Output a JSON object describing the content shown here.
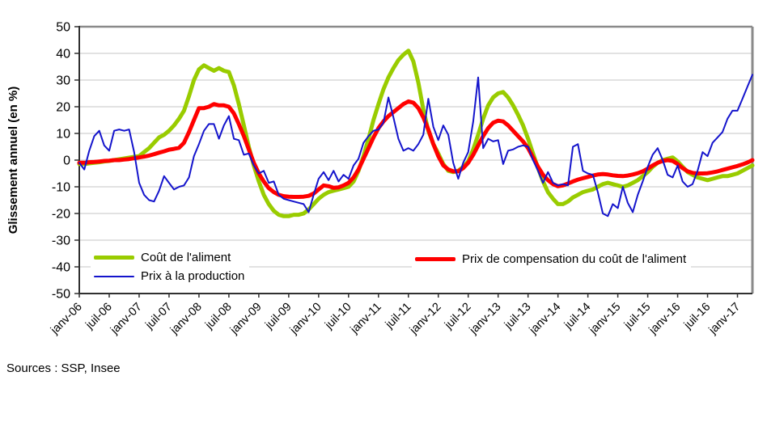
{
  "chart_data": {
    "type": "line",
    "title": "",
    "ylabel": "Glissement annuel (en %)",
    "ylim": [
      -50,
      50
    ],
    "y_ticks": [
      50,
      40,
      30,
      20,
      10,
      0,
      -10,
      -20,
      -30,
      -40,
      -50
    ],
    "x_tick_labels": [
      "janv-06",
      "juil-06",
      "janv-07",
      "juil-07",
      "janv-08",
      "juil-08",
      "janv-09",
      "juil-09",
      "janv-10",
      "juil-10",
      "janv-11",
      "juil-11",
      "janv-12",
      "juil-12",
      "janv-13",
      "juil-13",
      "janv-14",
      "juil-14",
      "janv-15",
      "juil-15",
      "janv-16",
      "juil-16",
      "janv-17"
    ],
    "x_tick_every": 6,
    "n_points": 136,
    "grid": "horizontal-only",
    "legend_position": "inside-bottom",
    "grid_color": "#C6C6C6",
    "axis_color": "#303030",
    "border_color": "#8A8A8A",
    "series": [
      {
        "name": "Coût de l'aliment",
        "color": "#99CC00",
        "stroke_width": 5,
        "values": [
          -1.5,
          -1.5,
          -1.2,
          -1,
          -0.8,
          -0.5,
          -0.3,
          0,
          0.3,
          0.6,
          0.9,
          1.2,
          1.5,
          3,
          4.5,
          6.5,
          8.5,
          9.5,
          11,
          13,
          15.5,
          18.5,
          24,
          30,
          34,
          35.5,
          34.5,
          33.5,
          34.5,
          33.5,
          33,
          28,
          21,
          13,
          5,
          -2,
          -8,
          -13,
          -16.5,
          -19,
          -20.5,
          -21,
          -21,
          -20.5,
          -20.5,
          -20,
          -18.5,
          -16.5,
          -14.5,
          -13,
          -12,
          -11.5,
          -11,
          -10.5,
          -10,
          -8,
          -4,
          1.5,
          8,
          15,
          21,
          26.5,
          31,
          34.5,
          37.5,
          39.5,
          41,
          37,
          29,
          19,
          11,
          6,
          2.5,
          -1.5,
          -4,
          -4.5,
          -4,
          -2.5,
          -0.5,
          4,
          9.5,
          15.5,
          20.5,
          23.5,
          25,
          25.5,
          23.5,
          20.5,
          17,
          13,
          8,
          2.5,
          -3,
          -8,
          -12,
          -14.5,
          -16.5,
          -16.5,
          -15.5,
          -14,
          -13,
          -12,
          -11.5,
          -11,
          -10,
          -9,
          -8.5,
          -9,
          -9.5,
          -10,
          -9.5,
          -8.5,
          -7.5,
          -6,
          -4.5,
          -2.5,
          -1,
          0,
          0.5,
          1,
          -0.5,
          -2.5,
          -4.5,
          -5.5,
          -6.5,
          -7,
          -7.5,
          -7,
          -6.5,
          -6,
          -6,
          -5.5,
          -5,
          -4,
          -3,
          -2
        ]
      },
      {
        "name": "Prix de compensation du coût de l'aliment",
        "color": "#FF0000",
        "stroke_width": 5,
        "values": [
          -1,
          -1,
          -0.8,
          -0.7,
          -0.5,
          -0.3,
          -0.2,
          0,
          0,
          0.2,
          0.4,
          0.7,
          1,
          1.3,
          1.7,
          2.2,
          2.8,
          3.3,
          3.9,
          4.2,
          4.6,
          6.5,
          10.5,
          15,
          19.5,
          19.5,
          20,
          21,
          20.5,
          20.5,
          20,
          17.5,
          13.5,
          9,
          4,
          -1,
          -5,
          -8,
          -10.5,
          -12,
          -13,
          -13.5,
          -13.7,
          -13.8,
          -13.8,
          -13.7,
          -13.4,
          -12.5,
          -11,
          -9.5,
          -9.8,
          -10.4,
          -10.2,
          -9.5,
          -8.5,
          -6.5,
          -3.5,
          0.5,
          4.5,
          8.5,
          12,
          14.5,
          16.5,
          18,
          19.5,
          21,
          22,
          21.5,
          19.5,
          16,
          11.5,
          6,
          1.5,
          -2,
          -3.5,
          -4.2,
          -4.2,
          -3,
          -1,
          2,
          5.5,
          9,
          12,
          14,
          14.8,
          14.5,
          13,
          11,
          9,
          7,
          4.5,
          1,
          -2.5,
          -5.5,
          -7.5,
          -9,
          -9.8,
          -9.5,
          -8.8,
          -8,
          -7.3,
          -6.8,
          -6.3,
          -5.8,
          -5.4,
          -5.2,
          -5.4,
          -5.7,
          -5.9,
          -6,
          -5.8,
          -5.4,
          -4.9,
          -4.2,
          -3.2,
          -2,
          -1,
          -0.3,
          0,
          -0.3,
          -1.5,
          -3,
          -4.2,
          -4.8,
          -5,
          -5,
          -4.9,
          -4.6,
          -4.2,
          -3.7,
          -3.2,
          -2.7,
          -2.2,
          -1.6,
          -0.9,
          0
        ]
      },
      {
        "name": "Prix à la production",
        "color": "#1414CC",
        "stroke_width": 2,
        "values": [
          -1,
          -3.5,
          3.5,
          9,
          11,
          5.5,
          3.5,
          11,
          11.5,
          11,
          11.5,
          3,
          -8.5,
          -13,
          -15,
          -15.5,
          -11.5,
          -6,
          -8.5,
          -11,
          -10,
          -9.5,
          -6.5,
          1.5,
          6,
          11,
          13.5,
          13.5,
          8,
          13,
          16.5,
          8,
          7.5,
          2,
          2.5,
          -2,
          -5,
          -4,
          -8.5,
          -8,
          -13,
          -14.5,
          -15,
          -15.5,
          -16,
          -16.5,
          -19.5,
          -13,
          -7,
          -4.5,
          -7.5,
          -4,
          -8,
          -5.5,
          -7,
          -2,
          0.5,
          6.5,
          9,
          11,
          11.5,
          14,
          23.5,
          16,
          8,
          3.5,
          4.5,
          3.5,
          6,
          9.5,
          23,
          12.5,
          7.5,
          13,
          9.5,
          -1,
          -7,
          -1,
          3,
          14.5,
          31,
          4.5,
          8,
          7,
          7.5,
          -1.5,
          3.5,
          4,
          5,
          5.5,
          5,
          0,
          -4,
          -8.5,
          -4.5,
          -8.5,
          -9.5,
          -9,
          -9.5,
          5,
          6,
          -4,
          -5,
          -5.5,
          -12,
          -20,
          -21,
          -16.5,
          -18,
          -10,
          -16,
          -19.5,
          -13,
          -8,
          -2.5,
          2,
          4.5,
          0,
          -5.5,
          -6.5,
          -2,
          -8,
          -10,
          -9,
          -4,
          3,
          1.5,
          6.5,
          8.5,
          10.5,
          15.5,
          18.5,
          18.5,
          23,
          27.5,
          32
        ]
      }
    ]
  },
  "footer": {
    "sources": "Sources : SSP, Insee"
  }
}
